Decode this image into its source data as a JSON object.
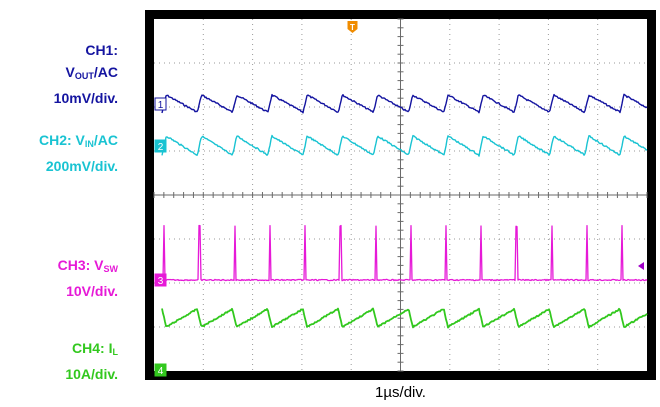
{
  "chart_data": {
    "type": "line",
    "title": "",
    "xlabel": "1µs/div.",
    "ylabel": "",
    "grid": true,
    "channels": [
      {
        "id": "CH1",
        "marker": "1",
        "line1": "CH1:",
        "signal": "V",
        "signal_sub": "OUT",
        "signal_suffix": "/AC",
        "scale": "10mV/div.",
        "color": "#1414a0",
        "waveform": "ripple_sawtooth"
      },
      {
        "id": "CH2",
        "marker": "2",
        "line1_prefix": "CH2: ",
        "signal": "V",
        "signal_sub": "IN",
        "signal_suffix": "/AC",
        "scale": "200mV/div.",
        "color": "#19c3d2",
        "waveform": "ripple_sawtooth"
      },
      {
        "id": "CH3",
        "marker": "3",
        "line1_prefix": "CH3: ",
        "signal": "V",
        "signal_sub": "SW",
        "signal_suffix": "",
        "scale": "10V/div.",
        "color": "#e619d7",
        "waveform": "pulse_spikes"
      },
      {
        "id": "CH4",
        "marker": "4",
        "line1_prefix": "CH4: ",
        "signal": "I",
        "signal_sub": "L",
        "signal_suffix": "",
        "scale": "10A/div.",
        "color": "#32c81e",
        "waveform": "triangle"
      }
    ],
    "x_divisions": 10,
    "y_divisions": 8,
    "switching_periods_shown": 14,
    "trigger_marker": "T",
    "trigger_color": "#f08c00"
  }
}
